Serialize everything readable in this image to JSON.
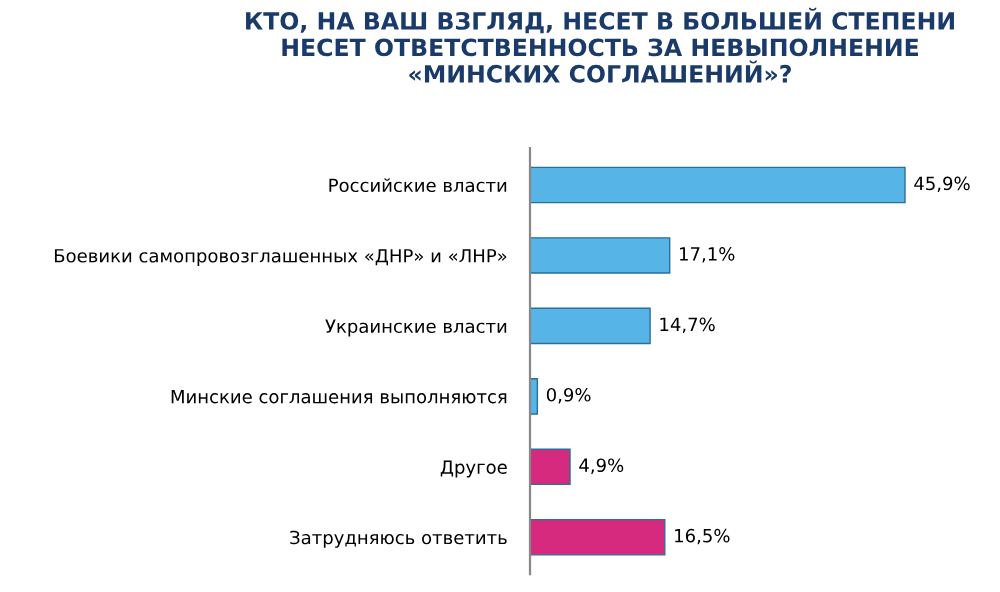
{
  "chart_data": {
    "type": "bar",
    "orientation": "horizontal",
    "title": "КТО, НА ВАШ ВЗГЛЯД, НЕСЕТ В БОЛЬШЕЙ СТЕПЕНИ\nНЕСЕТ ОТВЕТСТВЕННОСТЬ ЗА НЕВЫПОЛНЕНИЕ\n«МИНСКИХ СОГЛАШЕНИЙ»?",
    "categories": [
      "Российские власти",
      "Боевики самопровозглашенных «ДНР» и «ЛНР»",
      "Украинские власти",
      "Минские соглашения выполняются",
      "Другое",
      "Затрудняюсь ответить"
    ],
    "values": [
      45.9,
      17.1,
      14.7,
      0.9,
      4.9,
      16.5
    ],
    "colors": [
      "#56b4e6",
      "#56b4e6",
      "#56b4e6",
      "#56b4e6",
      "#d62a7e",
      "#d62a7e"
    ],
    "value_labels": [
      "45,9%",
      "17,1%",
      "14,7%",
      "0,9%",
      "4,9%",
      "16,5%"
    ],
    "grid": false,
    "legend": false
  }
}
